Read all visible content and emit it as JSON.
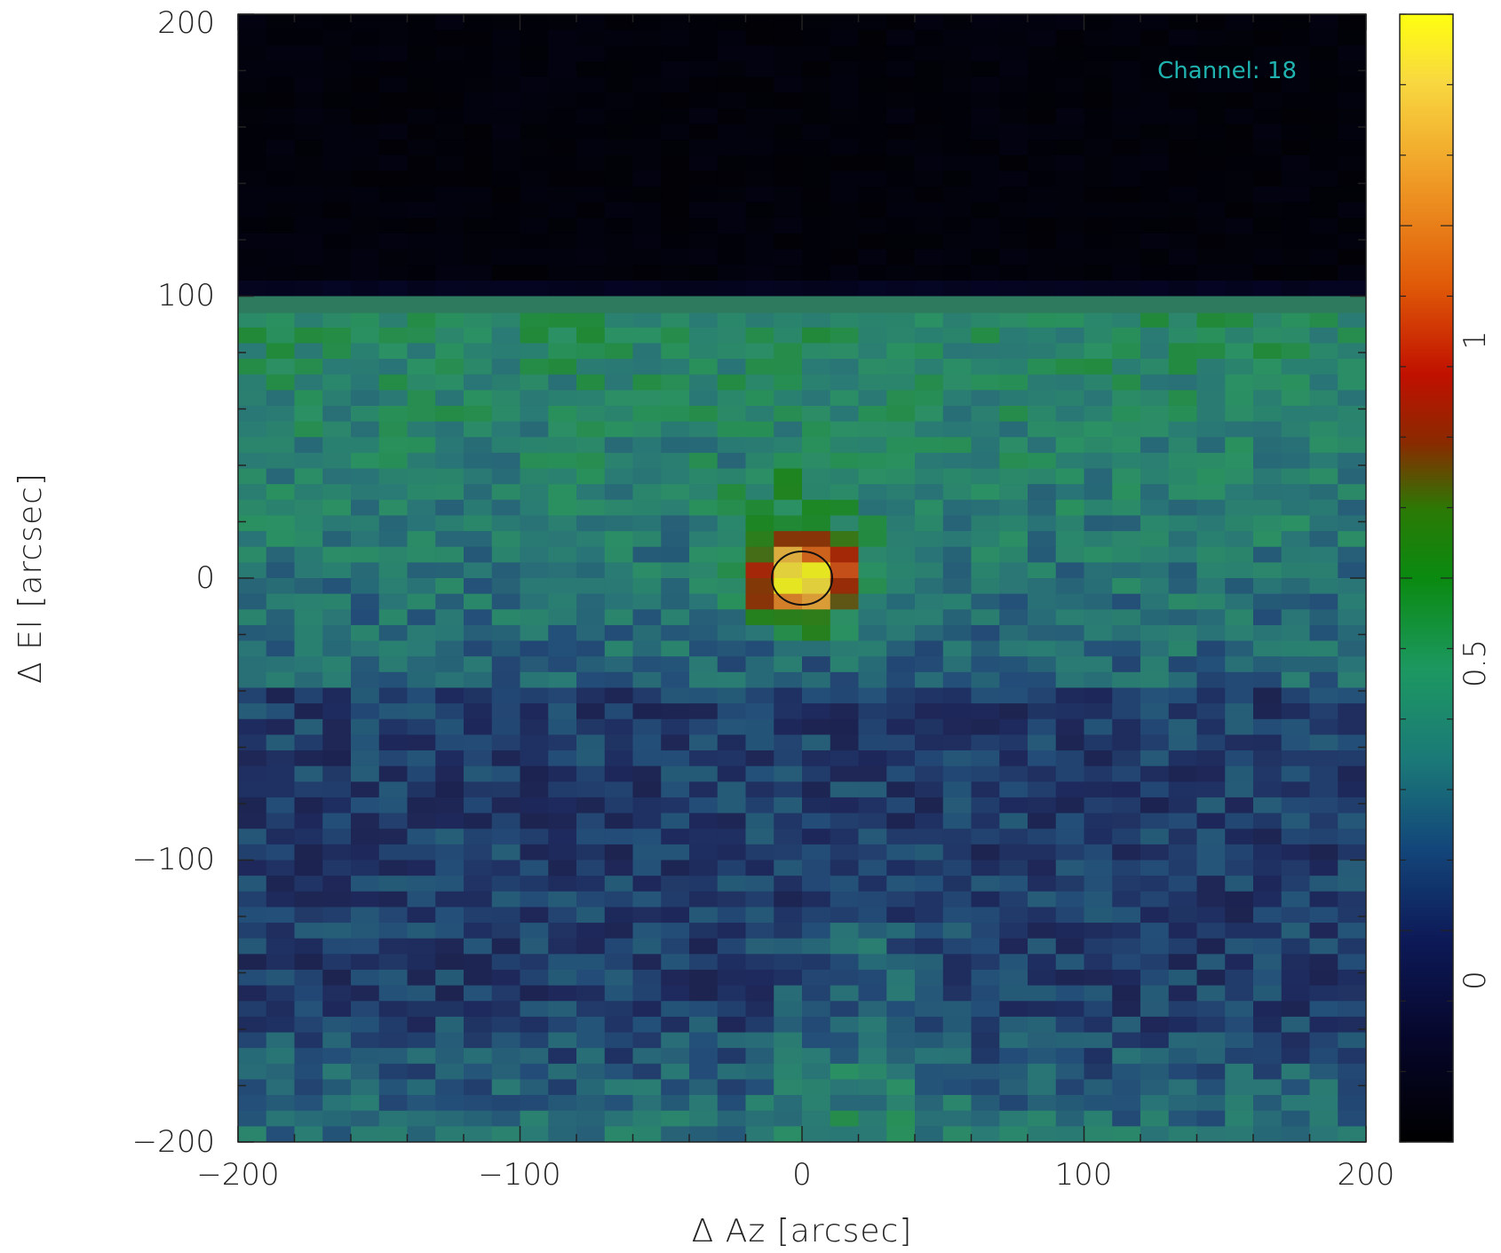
{
  "chart_data": {
    "type": "heatmap",
    "title": "",
    "xlabel": "Δ Az [arcsec]",
    "ylabel": "Δ El [arcsec]",
    "xlim": [
      -200,
      200
    ],
    "ylim": [
      -200,
      200
    ],
    "x_ticks": [
      -200,
      -100,
      0,
      100,
      200
    ],
    "y_ticks": [
      -200,
      -100,
      0,
      100,
      200
    ],
    "x_tick_labels": [
      "−200",
      "−100",
      "0",
      "100",
      "200"
    ],
    "y_tick_labels": [
      "−200",
      "−100",
      "0",
      "100",
      "200"
    ],
    "annotation": "Channel: 18",
    "source": {
      "x": 0,
      "y": 0,
      "peak": 1.2,
      "beam_circle": true
    },
    "masked_region": {
      "y_min": 94,
      "y_max": 200
    },
    "colorbar": {
      "range": [
        -0.3,
        1.3
      ],
      "ticks": [
        0,
        0.5,
        1
      ],
      "tick_labels": [
        "0",
        "0.5",
        "1"
      ],
      "colormap": [
        "#000000",
        "#0b0b40",
        "#1c3f78",
        "#1f7e78",
        "#1a9f5a",
        "#0a8a0a",
        "#9a1000",
        "#e07a10",
        "#f8d040",
        "#ffff00"
      ]
    }
  }
}
